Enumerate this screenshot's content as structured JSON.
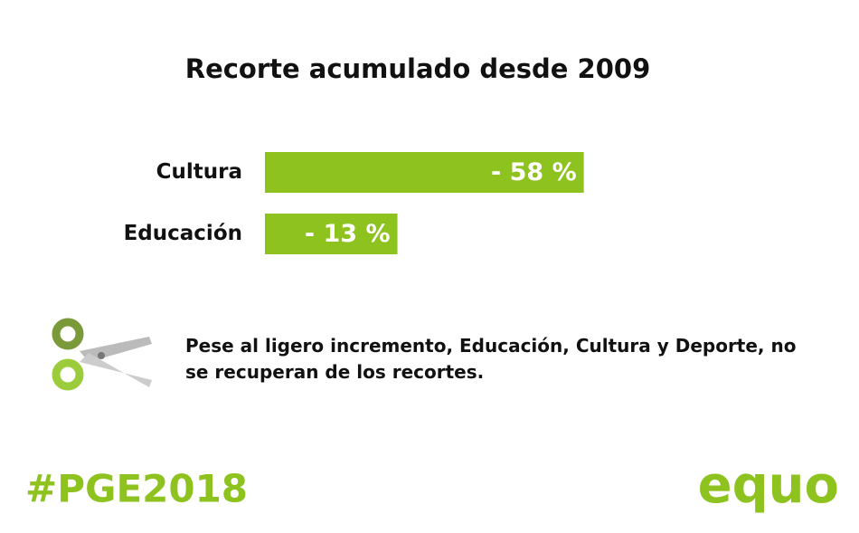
{
  "chart_data": {
    "type": "bar",
    "title": "Recorte acumulado desde 2009",
    "categories": [
      "Cultura",
      "Educación"
    ],
    "values": [
      -58,
      -13
    ],
    "value_labels": [
      "- 58 %",
      "- 13 %"
    ],
    "color": "#8dc21f"
  },
  "note": "Pese al ligero incremento, Educación, Cultura y Deporte, no se recuperan de los recortes.",
  "hashtag": "#PGE2018",
  "logo": "equo"
}
